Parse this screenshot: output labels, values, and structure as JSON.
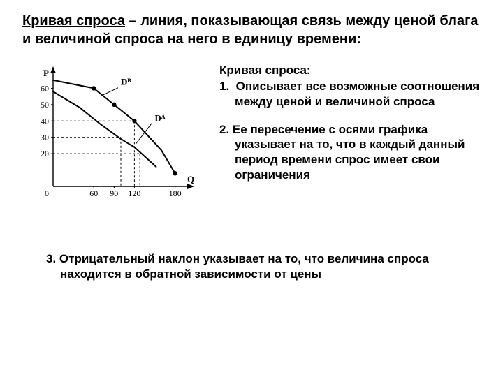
{
  "title": {
    "underlined": "Кривая спроса",
    "rest": " – линия, показывающая связь между ценой блага и величиной спроса на него в единицу времени:"
  },
  "list": {
    "subtitle": "Кривая спроса:",
    "item1_num": "1.",
    "item1_body": "Описывает все возможные соотношения  между ценой и величиной спроса",
    "item2_num": "2.",
    "item2_body": "Ее пересечение с осями графика указывает на то, что в каждый данный период времени спрос имеет свои ограничения",
    "item3_num": "3.",
    "item3_body": "Отрицательный наклон указывает на то, что величина спроса находится в обратной зависимости от цены"
  },
  "chart": {
    "type": "line",
    "background_color": "#ffffff",
    "axis_color": "#000000",
    "curve_color": "#000000",
    "second_curve_color": "#000000",
    "dash_color": "#000000",
    "point_fill": "#000000",
    "y_label": "P",
    "x_label": "Q",
    "y_ticks": [
      20,
      30,
      40,
      50,
      60
    ],
    "x_ticks": [
      60,
      90,
      120,
      180
    ],
    "x_origin": "0",
    "xlim": [
      0,
      200
    ],
    "ylim": [
      0,
      70
    ],
    "curve1_label": "Dᴮ",
    "curve2_label": "Dᴬ",
    "curve1_points": [
      {
        "x": 0,
        "y": 65
      },
      {
        "x": 60,
        "y": 60
      },
      {
        "x": 90,
        "y": 50
      },
      {
        "x": 120,
        "y": 40
      },
      {
        "x": 160,
        "y": 22
      },
      {
        "x": 180,
        "y": 8
      }
    ],
    "curve2_points": [
      {
        "x": 0,
        "y": 58
      },
      {
        "x": 40,
        "y": 48
      },
      {
        "x": 70,
        "y": 38
      },
      {
        "x": 100,
        "y": 29
      },
      {
        "x": 120,
        "y": 24
      },
      {
        "x": 152,
        "y": 12
      }
    ],
    "annotation_points": [
      {
        "x": 60,
        "y": 60
      },
      {
        "x": 90,
        "y": 50
      },
      {
        "x": 120,
        "y": 40
      },
      {
        "x": 180,
        "y": 8
      }
    ],
    "dash_lines": [
      {
        "y": 40,
        "x": 120
      },
      {
        "y": 30,
        "x": 100
      },
      {
        "y": 20,
        "x": 128
      }
    ],
    "curve_width": 2,
    "axis_width": 1.4,
    "dash_pattern": "3,3",
    "point_radius": 3.2,
    "tick_fontsize": 12,
    "label_fontsize": 13
  }
}
